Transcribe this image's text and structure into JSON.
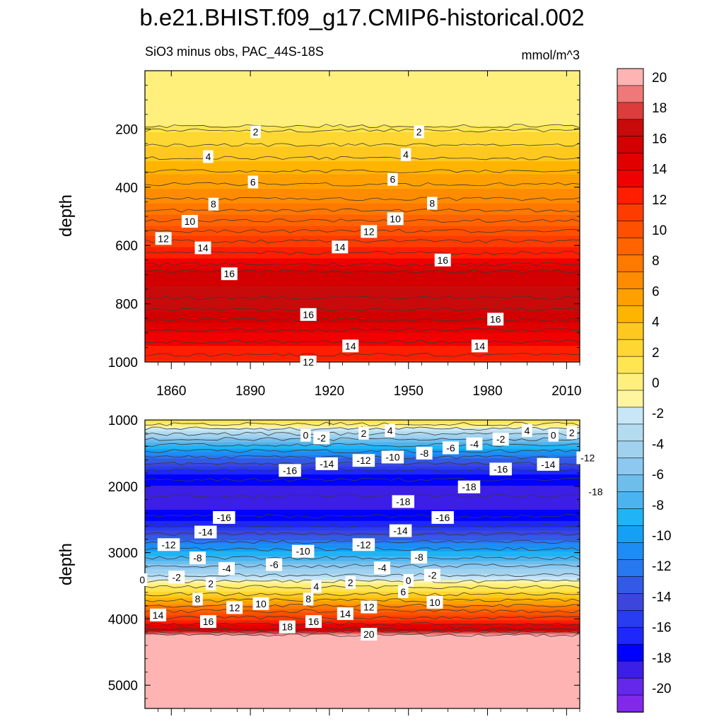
{
  "title": "b.e21.BHIST.f09_g17.CMIP6-historical.002",
  "chart_data": {
    "type": "heatmap",
    "subtitle": "SiO3 minus obs, PAC_44S-18S",
    "units": "mmol/m^3",
    "xlabel": "",
    "ylabel": "depth",
    "xlim": [
      1850,
      2015
    ],
    "x_ticks": [
      "1860",
      "1890",
      "1920",
      "1950",
      "1980",
      "2010"
    ],
    "colorbar": {
      "levels": [
        -20,
        -18,
        -16,
        -14,
        -12,
        -10,
        -8,
        -6,
        -4,
        -2,
        0,
        2,
        4,
        6,
        8,
        10,
        12,
        14,
        16,
        18,
        20
      ],
      "tick_labels": [
        "20",
        "18",
        "16",
        "14",
        "12",
        "10",
        "8",
        "6",
        "4",
        "2",
        "0",
        "-2",
        "-4",
        "-6",
        "-8",
        "-10",
        "-12",
        "-14",
        "-16",
        "-18",
        "-20"
      ],
      "colors": [
        "#ffb4b4",
        "#f07878",
        "#dc3c3c",
        "#c80a0a",
        "#d20000",
        "#e10000",
        "#f00000",
        "#ff1e00",
        "#ff3c00",
        "#ff5000",
        "#ff6400",
        "#ff7800",
        "#ff8c00",
        "#ffa000",
        "#ffb400",
        "#ffc81e",
        "#ffd732",
        "#ffe650",
        "#fff07d",
        "#fff5a0",
        "#c8e6f5",
        "#b4dcf0",
        "#a0d2f0",
        "#8cc8f0",
        "#6ebeeb",
        "#4bb4f0",
        "#1eb4f5",
        "#14a0f5",
        "#1e8cf5",
        "#2878f0",
        "#325ae6",
        "#3c46dc",
        "#283cf0",
        "#1e28fa",
        "#0000ff",
        "#3c1ee6",
        "#6428eb",
        "#8228eb"
      ]
    },
    "panels": [
      {
        "name": "upper",
        "ylim": [
          0,
          1000
        ],
        "y_ticks": [
          "200",
          "400",
          "600",
          "800",
          "1000"
        ],
        "y_tick_values": [
          200,
          400,
          600,
          800,
          1000
        ],
        "profile": {
          "depth": [
            0,
            190,
            205,
            255,
            300,
            345,
            390,
            440,
            480,
            515,
            550,
            585,
            625,
            665,
            690,
            780,
            820,
            855,
            890,
            930,
            975,
            1000
          ],
          "value": [
            1.0,
            1.0,
            2.0,
            3.0,
            4.0,
            5.0,
            6.0,
            7.0,
            8.0,
            9.0,
            10.0,
            11.0,
            12.0,
            13.5,
            15.0,
            16.5,
            16.0,
            15.0,
            14.0,
            13.0,
            12.0,
            11.5
          ]
        },
        "contour_labels": [
          {
            "text": "2",
            "year": 1892,
            "depth": 210
          },
          {
            "text": "2",
            "year": 1954,
            "depth": 210
          },
          {
            "text": "4",
            "year": 1874,
            "depth": 295
          },
          {
            "text": "4",
            "year": 1949,
            "depth": 288
          },
          {
            "text": "6",
            "year": 1891,
            "depth": 382
          },
          {
            "text": "6",
            "year": 1944,
            "depth": 373
          },
          {
            "text": "8",
            "year": 1876,
            "depth": 458
          },
          {
            "text": "8",
            "year": 1959,
            "depth": 455
          },
          {
            "text": "10",
            "year": 1867,
            "depth": 517
          },
          {
            "text": "10",
            "year": 1945,
            "depth": 508
          },
          {
            "text": "12",
            "year": 1857,
            "depth": 576
          },
          {
            "text": "12",
            "year": 1935,
            "depth": 552
          },
          {
            "text": "14",
            "year": 1872,
            "depth": 608
          },
          {
            "text": "14",
            "year": 1924,
            "depth": 605
          },
          {
            "text": "16",
            "year": 1963,
            "depth": 650
          },
          {
            "text": "16",
            "year": 1882,
            "depth": 697
          },
          {
            "text": "16",
            "year": 1912,
            "depth": 837
          },
          {
            "text": "16",
            "year": 1983,
            "depth": 853
          },
          {
            "text": "14",
            "year": 1928,
            "depth": 945
          },
          {
            "text": "14",
            "year": 1977,
            "depth": 945
          },
          {
            "text": "12",
            "year": 1912,
            "depth": 1000
          }
        ]
      },
      {
        "name": "lower",
        "ylim": [
          1000,
          5350
        ],
        "y_ticks": [
          "1000",
          "2000",
          "3000",
          "4000",
          "5000"
        ],
        "y_tick_values": [
          1000,
          2000,
          3000,
          4000,
          5000
        ],
        "profile": {
          "depth": [
            1000,
            1060,
            1130,
            1210,
            1290,
            1380,
            1470,
            1560,
            1660,
            1760,
            1900,
            2150,
            2450,
            2600,
            2720,
            2840,
            2950,
            3080,
            3200,
            3340,
            3430,
            3520,
            3630,
            3720,
            3800,
            3880,
            3980,
            4080,
            4150,
            4200,
            4240,
            5350
          ],
          "value": [
            2.0,
            1.0,
            -1.0,
            -3.0,
            -5.0,
            -7.0,
            -9.0,
            -11.0,
            -13.0,
            -15.0,
            -16.5,
            -17.5,
            -16.5,
            -15.0,
            -13.0,
            -11.0,
            -9.0,
            -7.0,
            -5.0,
            -3.0,
            -1.0,
            1.0,
            3.0,
            5.0,
            7.0,
            9.0,
            11.0,
            13.0,
            15.0,
            17.0,
            19.0,
            21.0
          ]
        },
        "contour_labels": [
          {
            "text": "0",
            "year": 1911,
            "depth": 1230
          },
          {
            "text": "-2",
            "year": 1917,
            "depth": 1270
          },
          {
            "text": "2",
            "year": 1933,
            "depth": 1200
          },
          {
            "text": "4",
            "year": 1943,
            "depth": 1160
          },
          {
            "text": "-12",
            "year": 1933,
            "depth": 1610
          },
          {
            "text": "-10",
            "year": 1944,
            "depth": 1560
          },
          {
            "text": "-8",
            "year": 1956,
            "depth": 1500
          },
          {
            "text": "-6",
            "year": 1966,
            "depth": 1420
          },
          {
            "text": "-4",
            "year": 1975,
            "depth": 1360
          },
          {
            "text": "-2",
            "year": 1985,
            "depth": 1290
          },
          {
            "text": "4",
            "year": 1995,
            "depth": 1160
          },
          {
            "text": "0",
            "year": 2005,
            "depth": 1230
          },
          {
            "text": "2",
            "year": 2012,
            "depth": 1190
          },
          {
            "text": "-14",
            "year": 1919,
            "depth": 1660
          },
          {
            "text": "-16",
            "year": 1905,
            "depth": 1760
          },
          {
            "text": "-16",
            "year": 1985,
            "depth": 1740
          },
          {
            "text": "-14",
            "year": 2003,
            "depth": 1670
          },
          {
            "text": "-12",
            "year": 2018,
            "depth": 1570
          },
          {
            "text": "-18",
            "year": 1973,
            "depth": 2010
          },
          {
            "text": "-18",
            "year": 2021,
            "depth": 2080
          },
          {
            "text": "-18",
            "year": 1948,
            "depth": 2230
          },
          {
            "text": "-16",
            "year": 1880,
            "depth": 2470
          },
          {
            "text": "-16",
            "year": 1963,
            "depth": 2470
          },
          {
            "text": "-14",
            "year": 1873,
            "depth": 2690
          },
          {
            "text": "-14",
            "year": 1947,
            "depth": 2670
          },
          {
            "text": "-12",
            "year": 1859,
            "depth": 2880
          },
          {
            "text": "-12",
            "year": 1933,
            "depth": 2880
          },
          {
            "text": "-10",
            "year": 1910,
            "depth": 2980
          },
          {
            "text": "-8",
            "year": 1870,
            "depth": 3080
          },
          {
            "text": "-8",
            "year": 1954,
            "depth": 3070
          },
          {
            "text": "-6",
            "year": 1899,
            "depth": 3180
          },
          {
            "text": "-4",
            "year": 1881,
            "depth": 3240
          },
          {
            "text": "-4",
            "year": 1940,
            "depth": 3230
          },
          {
            "text": "-2",
            "year": 1862,
            "depth": 3370
          },
          {
            "text": "-2",
            "year": 1959,
            "depth": 3340
          },
          {
            "text": "0",
            "year": 1849,
            "depth": 3410
          },
          {
            "text": "0",
            "year": 1950,
            "depth": 3420
          },
          {
            "text": "2",
            "year": 1875,
            "depth": 3470
          },
          {
            "text": "2",
            "year": 1928,
            "depth": 3450
          },
          {
            "text": "4",
            "year": 1915,
            "depth": 3510
          },
          {
            "text": "6",
            "year": 1948,
            "depth": 3590
          },
          {
            "text": "8",
            "year": 1870,
            "depth": 3700
          },
          {
            "text": "8",
            "year": 1912,
            "depth": 3700
          },
          {
            "text": "10",
            "year": 1894,
            "depth": 3770
          },
          {
            "text": "10",
            "year": 1960,
            "depth": 3750
          },
          {
            "text": "12",
            "year": 1884,
            "depth": 3830
          },
          {
            "text": "12",
            "year": 1935,
            "depth": 3820
          },
          {
            "text": "14",
            "year": 1855,
            "depth": 3940
          },
          {
            "text": "14",
            "year": 1926,
            "depth": 3920
          },
          {
            "text": "16",
            "year": 1874,
            "depth": 4040
          },
          {
            "text": "16",
            "year": 1914,
            "depth": 4040
          },
          {
            "text": "18",
            "year": 1904,
            "depth": 4120
          },
          {
            "text": "20",
            "year": 1935,
            "depth": 4230
          }
        ]
      }
    ]
  }
}
